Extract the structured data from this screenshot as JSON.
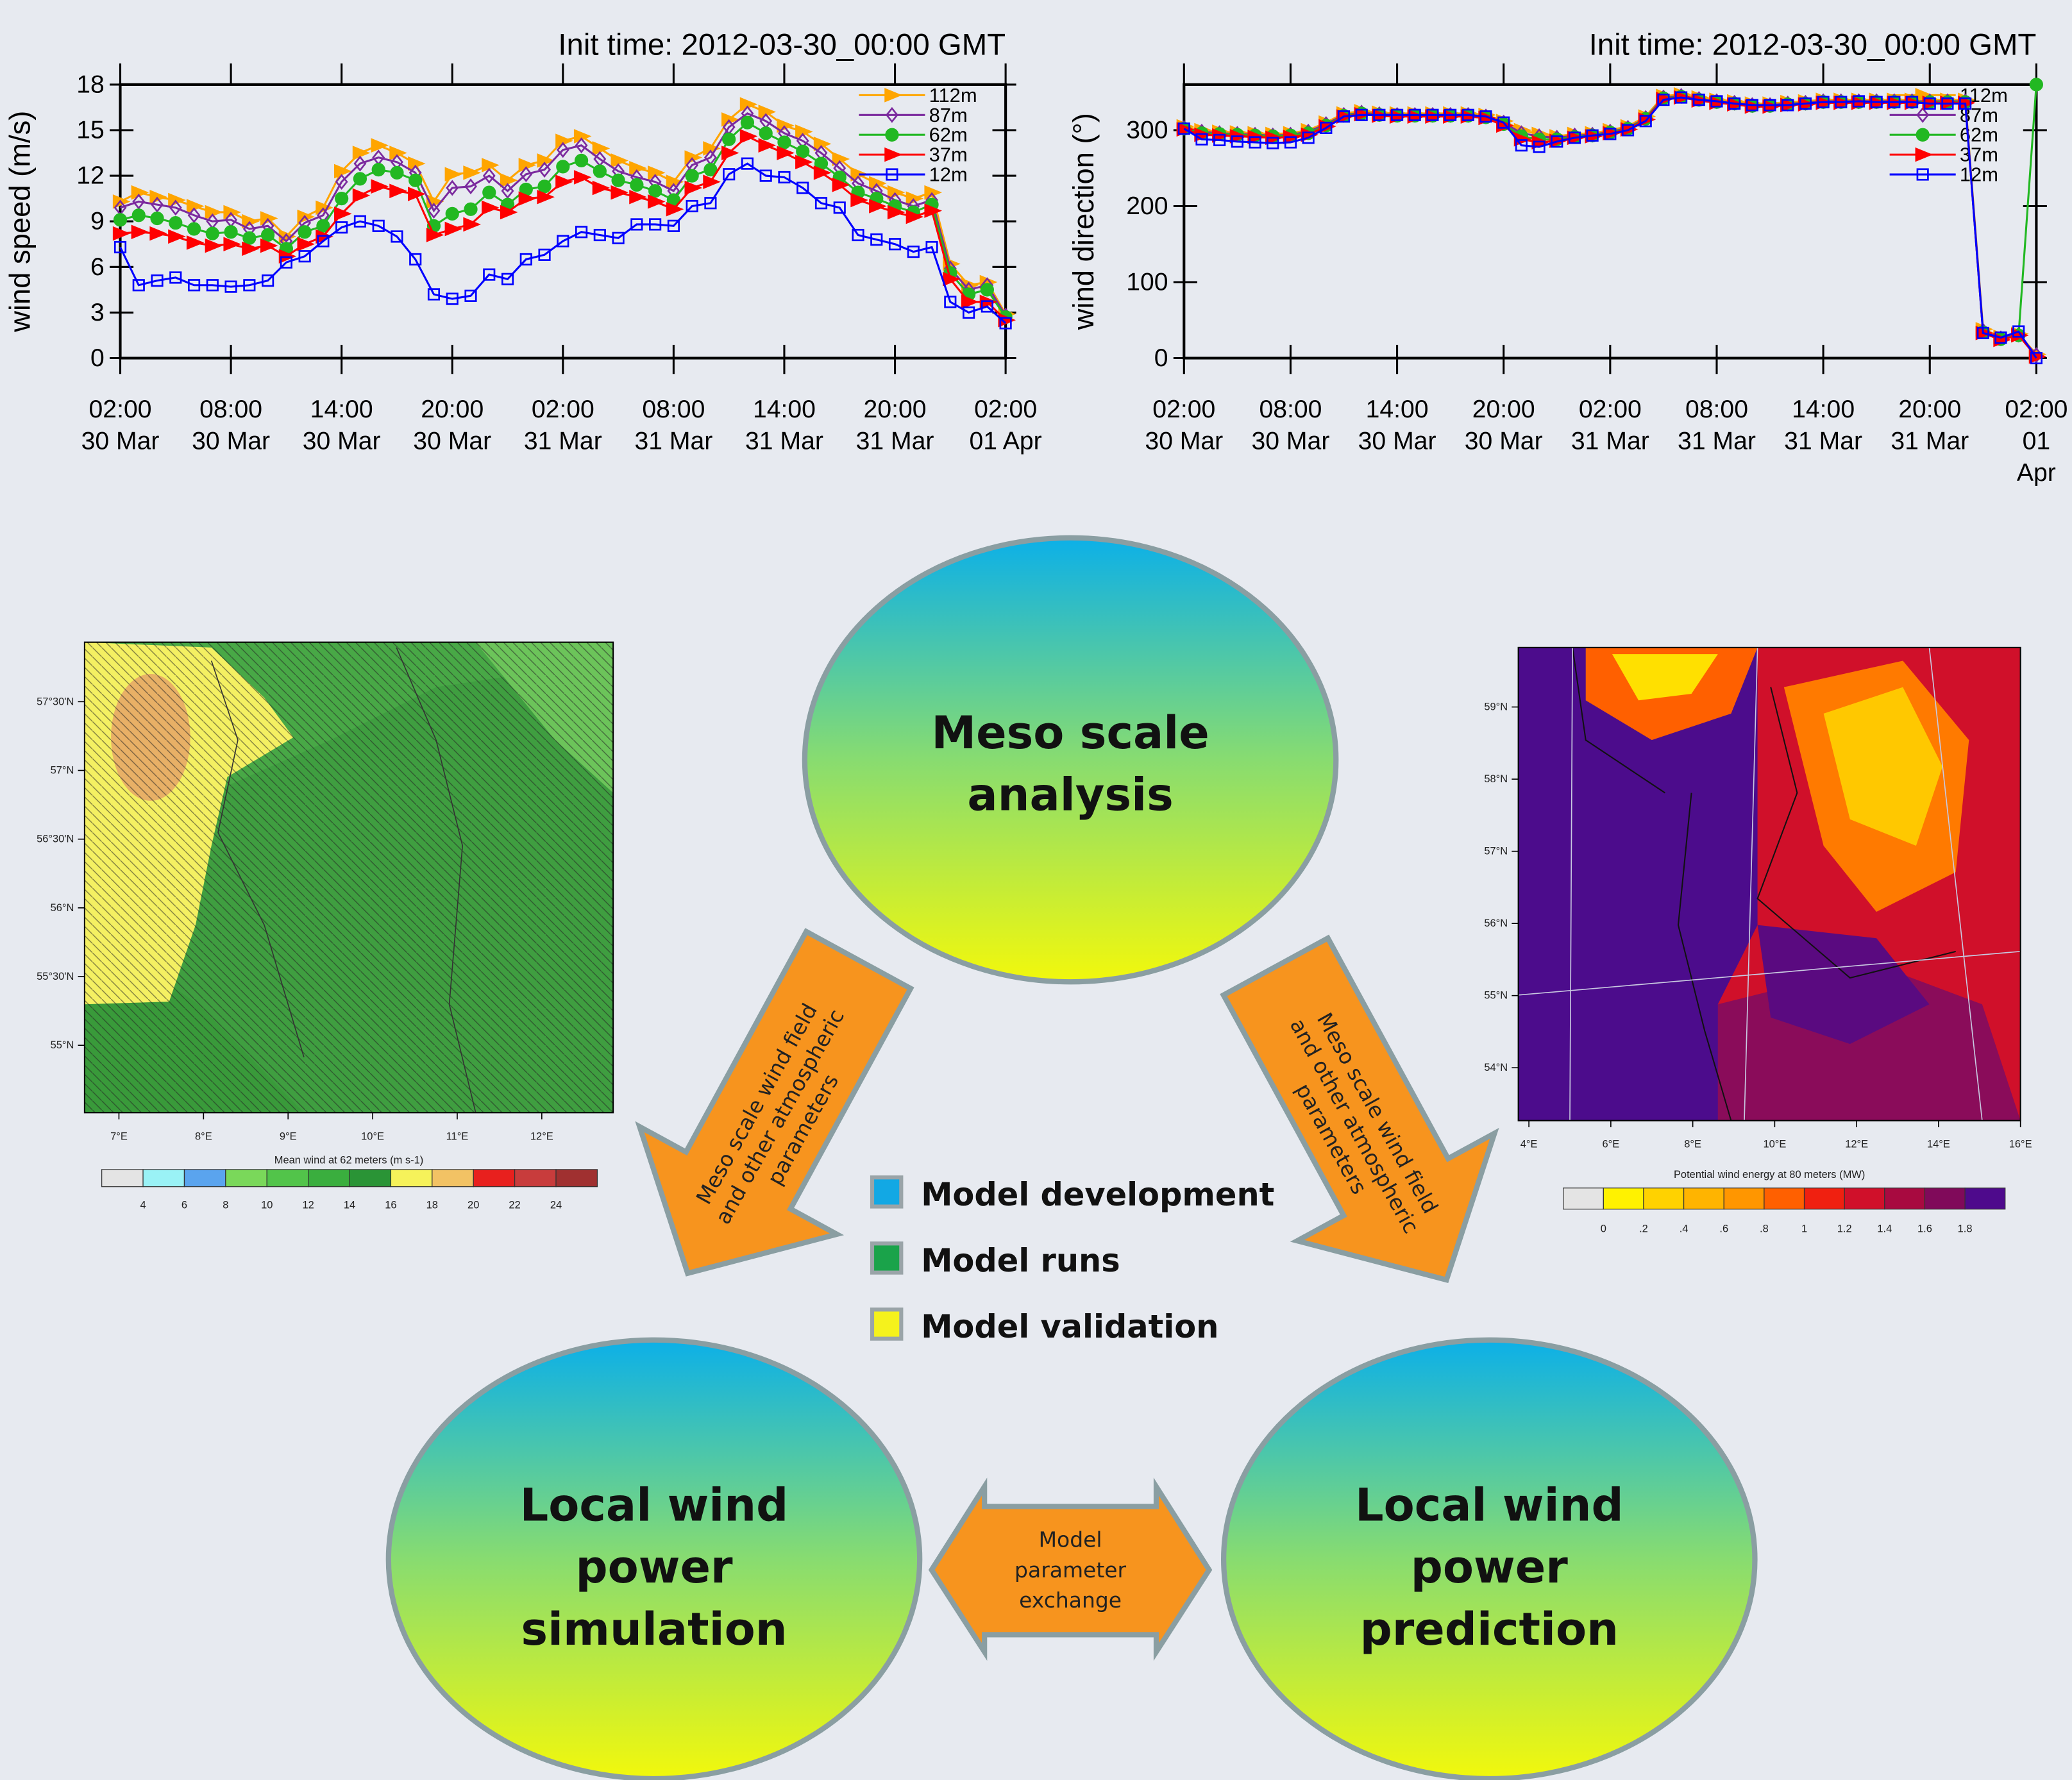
{
  "chart_data": [
    {
      "type": "line",
      "title": "Init time: 2012-03-30_00:00 GMT",
      "ylabel": "wind speed (m/s)",
      "x": [
        "30 Mar 02:00",
        "30 Mar 03:00",
        "30 Mar 04:00",
        "30 Mar 05:00",
        "30 Mar 06:00",
        "30 Mar 07:00",
        "30 Mar 08:00",
        "30 Mar 09:00",
        "30 Mar 10:00",
        "30 Mar 11:00",
        "30 Mar 12:00",
        "30 Mar 13:00",
        "30 Mar 14:00",
        "30 Mar 15:00",
        "30 Mar 16:00",
        "30 Mar 17:00",
        "30 Mar 18:00",
        "30 Mar 19:00",
        "30 Mar 20:00",
        "30 Mar 21:00",
        "30 Mar 22:00",
        "30 Mar 23:00",
        "31 Mar 00:00",
        "31 Mar 01:00",
        "31 Mar 02:00",
        "31 Mar 03:00",
        "31 Mar 04:00",
        "31 Mar 05:00",
        "31 Mar 06:00",
        "31 Mar 07:00",
        "31 Mar 08:00",
        "31 Mar 09:00",
        "31 Mar 10:00",
        "31 Mar 11:00",
        "31 Mar 12:00",
        "31 Mar 13:00",
        "31 Mar 14:00",
        "31 Mar 15:00",
        "31 Mar 16:00",
        "31 Mar 17:00",
        "31 Mar 18:00",
        "31 Mar 19:00",
        "31 Mar 20:00",
        "31 Mar 21:00",
        "31 Mar 22:00",
        "31 Mar 23:00",
        "01 Apr 00:00",
        "01 Apr 01:00",
        "01 Apr 02:00"
      ],
      "xticks": [
        {
          "value": "30 Mar 02:00",
          "label": "02:00\n30 Mar"
        },
        {
          "value": "30 Mar 08:00",
          "label": "08:00\n30 Mar"
        },
        {
          "value": "30 Mar 14:00",
          "label": "14:00\n30 Mar"
        },
        {
          "value": "30 Mar 20:00",
          "label": "20:00\n30 Mar"
        },
        {
          "value": "31 Mar 02:00",
          "label": "02:00\n31 Mar"
        },
        {
          "value": "31 Mar 08:00",
          "label": "08:00\n31 Mar"
        },
        {
          "value": "31 Mar 14:00",
          "label": "14:00\n31 Mar"
        },
        {
          "value": "31 Mar 20:00",
          "label": "20:00\n31 Mar"
        },
        {
          "value": "01 Apr 02:00",
          "label": "02:00\n01 Apr"
        }
      ],
      "ylim": [
        0,
        18
      ],
      "yticks": [
        0,
        3,
        6,
        9,
        12,
        15,
        18
      ],
      "legend": "upper right",
      "series": [
        {
          "name": "112m",
          "color": "#ffa500",
          "marker": "triangle-right",
          "filled": true,
          "values": [
            10.3,
            10.9,
            10.6,
            10.4,
            10.0,
            9.6,
            9.6,
            9.0,
            9.2,
            8.0,
            9.3,
            9.9,
            12.3,
            13.5,
            14.0,
            13.5,
            12.8,
            10.3,
            12.1,
            12.2,
            12.7,
            11.7,
            12.7,
            13.0,
            14.3,
            14.6,
            13.8,
            13.0,
            12.5,
            12.2,
            11.6,
            13.2,
            13.8,
            15.7,
            16.7,
            16.2,
            15.3,
            14.9,
            14.1,
            13.1,
            12.1,
            11.5,
            10.9,
            10.5,
            10.9,
            6.2,
            4.8,
            5.0,
            2.9
          ]
        },
        {
          "name": "87m",
          "color": "#7b2a9e",
          "marker": "diamond",
          "filled": false,
          "values": [
            9.9,
            10.3,
            10.1,
            9.9,
            9.4,
            9.0,
            9.1,
            8.5,
            8.7,
            7.7,
            8.9,
            9.4,
            11.6,
            12.8,
            13.2,
            12.9,
            12.2,
            9.7,
            11.2,
            11.3,
            12.0,
            11.0,
            12.1,
            12.4,
            13.7,
            14.0,
            13.1,
            12.3,
            11.9,
            11.6,
            11.0,
            12.7,
            13.2,
            15.2,
            16.1,
            15.6,
            14.8,
            14.3,
            13.5,
            12.5,
            11.5,
            11.0,
            10.4,
            10.0,
            10.4,
            5.9,
            4.5,
            4.8,
            2.8
          ]
        },
        {
          "name": "62m",
          "color": "#22b822",
          "marker": "circle",
          "filled": true,
          "values": [
            9.1,
            9.4,
            9.2,
            8.9,
            8.5,
            8.2,
            8.3,
            7.9,
            8.1,
            7.2,
            8.3,
            8.7,
            10.5,
            11.8,
            12.4,
            12.2,
            11.7,
            8.7,
            9.5,
            9.8,
            10.9,
            10.1,
            11.1,
            11.3,
            12.6,
            13.0,
            12.3,
            11.7,
            11.4,
            11.0,
            10.4,
            12.0,
            12.4,
            14.4,
            15.5,
            14.8,
            14.2,
            13.6,
            12.8,
            11.9,
            10.9,
            10.5,
            10.0,
            9.6,
            10.1,
            5.6,
            4.2,
            4.5,
            2.7
          ]
        },
        {
          "name": "37m",
          "color": "#ff0000",
          "marker": "triangle-right",
          "filled": true,
          "values": [
            8.2,
            8.3,
            8.2,
            8.0,
            7.6,
            7.4,
            7.5,
            7.2,
            7.4,
            6.7,
            7.5,
            8.0,
            9.5,
            10.7,
            11.3,
            11.0,
            10.8,
            8.1,
            8.5,
            8.8,
            9.9,
            9.6,
            10.5,
            10.6,
            11.6,
            11.9,
            11.2,
            10.9,
            10.6,
            10.3,
            9.8,
            11.2,
            11.6,
            13.5,
            14.6,
            14.0,
            13.5,
            12.9,
            12.2,
            11.4,
            10.4,
            10.0,
            9.6,
            9.3,
            9.7,
            5.2,
            3.7,
            3.7,
            2.5
          ]
        },
        {
          "name": "12m",
          "color": "#0000ff",
          "marker": "square",
          "filled": false,
          "values": [
            7.3,
            4.8,
            5.1,
            5.3,
            4.8,
            4.8,
            4.7,
            4.8,
            5.1,
            6.3,
            6.7,
            7.7,
            8.6,
            9.0,
            8.7,
            8.0,
            6.5,
            4.2,
            3.9,
            4.1,
            5.5,
            5.2,
            6.5,
            6.8,
            7.7,
            8.3,
            8.1,
            7.9,
            8.8,
            8.8,
            8.7,
            10.0,
            10.2,
            12.1,
            12.8,
            12.0,
            11.9,
            11.2,
            10.2,
            9.9,
            8.1,
            7.8,
            7.5,
            7.0,
            7.3,
            3.7,
            3.0,
            3.4,
            2.3
          ]
        }
      ]
    },
    {
      "type": "line",
      "title": "Init time: 2012-03-30_00:00 GMT",
      "ylabel": "wind direction (°)",
      "x": [
        "30 Mar 02:00",
        "30 Mar 03:00",
        "30 Mar 04:00",
        "30 Mar 05:00",
        "30 Mar 06:00",
        "30 Mar 07:00",
        "30 Mar 08:00",
        "30 Mar 09:00",
        "30 Mar 10:00",
        "30 Mar 11:00",
        "30 Mar 12:00",
        "30 Mar 13:00",
        "30 Mar 14:00",
        "30 Mar 15:00",
        "30 Mar 16:00",
        "30 Mar 17:00",
        "30 Mar 18:00",
        "30 Mar 19:00",
        "30 Mar 20:00",
        "30 Mar 21:00",
        "30 Mar 22:00",
        "30 Mar 23:00",
        "31 Mar 00:00",
        "31 Mar 01:00",
        "31 Mar 02:00",
        "31 Mar 03:00",
        "31 Mar 04:00",
        "31 Mar 05:00",
        "31 Mar 06:00",
        "31 Mar 07:00",
        "31 Mar 08:00",
        "31 Mar 09:00",
        "31 Mar 10:00",
        "31 Mar 11:00",
        "31 Mar 12:00",
        "31 Mar 13:00",
        "31 Mar 14:00",
        "31 Mar 15:00",
        "31 Mar 16:00",
        "31 Mar 17:00",
        "31 Mar 18:00",
        "31 Mar 19:00",
        "31 Mar 20:00",
        "31 Mar 21:00",
        "31 Mar 22:00",
        "31 Mar 23:00",
        "01 Apr 00:00",
        "01 Apr 01:00",
        "01 Apr 02:00"
      ],
      "xticks": [
        {
          "value": "30 Mar 02:00",
          "label": "02:00\n30 Mar"
        },
        {
          "value": "30 Mar 08:00",
          "label": "08:00\n30 Mar"
        },
        {
          "value": "30 Mar 14:00",
          "label": "14:00\n30 Mar"
        },
        {
          "value": "30 Mar 20:00",
          "label": "20:00\n30 Mar"
        },
        {
          "value": "31 Mar 02:00",
          "label": "02:00\n31 Mar"
        },
        {
          "value": "31 Mar 08:00",
          "label": "08:00\n31 Mar"
        },
        {
          "value": "31 Mar 14:00",
          "label": "14:00\n31 Mar"
        },
        {
          "value": "31 Mar 20:00",
          "label": "20:00\n31 Mar"
        },
        {
          "value": "01 Apr 02:00",
          "label": "02:00\n01 Apr"
        }
      ],
      "ylim": [
        0,
        360
      ],
      "yticks": [
        0,
        100,
        200,
        300
      ],
      "legend": "upper right",
      "series": [
        {
          "name": "112m",
          "color": "#ffa500",
          "marker": "triangle-right",
          "filled": true,
          "values": [
            305,
            300,
            298,
            297,
            296,
            295,
            296,
            300,
            310,
            322,
            325,
            323,
            322,
            322,
            322,
            322,
            322,
            320,
            312,
            300,
            295,
            292,
            295,
            296,
            300,
            305,
            318,
            345,
            347,
            343,
            340,
            338,
            335,
            335,
            337,
            338,
            340,
            340,
            340,
            340,
            340,
            340,
            340,
            340,
            340,
            38,
            28,
            32,
            5
          ]
        },
        {
          "name": "87m",
          "color": "#7b2a9e",
          "marker": "diamond",
          "filled": false,
          "values": [
            303,
            298,
            296,
            295,
            294,
            293,
            294,
            298,
            308,
            320,
            323,
            321,
            320,
            320,
            320,
            320,
            320,
            318,
            310,
            296,
            292,
            290,
            293,
            294,
            298,
            303,
            316,
            343,
            345,
            341,
            338,
            336,
            333,
            333,
            335,
            336,
            338,
            338,
            338,
            338,
            338,
            338,
            338,
            338,
            338,
            36,
            26,
            31,
            4
          ]
        },
        {
          "name": "62m",
          "color": "#22b822",
          "marker": "circle",
          "filled": true,
          "values": [
            302,
            296,
            295,
            294,
            293,
            292,
            293,
            296,
            306,
            319,
            322,
            320,
            319,
            319,
            319,
            319,
            319,
            317,
            308,
            292,
            288,
            288,
            291,
            293,
            297,
            302,
            315,
            342,
            344,
            340,
            337,
            335,
            332,
            332,
            334,
            335,
            337,
            337,
            337,
            337,
            337,
            337,
            337,
            337,
            337,
            34,
            25,
            30,
            360
          ]
        },
        {
          "name": "37m",
          "color": "#ff0000",
          "marker": "triangle-right",
          "filled": true,
          "values": [
            301,
            294,
            293,
            292,
            291,
            290,
            291,
            294,
            305,
            318,
            321,
            319,
            318,
            318,
            318,
            318,
            318,
            316,
            306,
            288,
            284,
            286,
            290,
            292,
            296,
            301,
            314,
            341,
            343,
            339,
            336,
            334,
            331,
            331,
            333,
            334,
            336,
            336,
            336,
            336,
            336,
            336,
            336,
            336,
            336,
            33,
            24,
            30,
            2
          ]
        },
        {
          "name": "12m",
          "color": "#0000ff",
          "marker": "square",
          "filled": false,
          "values": [
            302,
            288,
            287,
            285,
            284,
            283,
            284,
            290,
            303,
            318,
            320,
            320,
            320,
            320,
            320,
            320,
            320,
            318,
            310,
            280,
            278,
            285,
            290,
            293,
            295,
            300,
            312,
            340,
            343,
            340,
            338,
            335,
            333,
            333,
            333,
            335,
            337,
            337,
            338,
            337,
            337,
            337,
            335,
            335,
            335,
            33,
            27,
            35,
            0
          ]
        }
      ]
    }
  ],
  "diagram": {
    "nodes": [
      {
        "lines": [
          "Meso scale",
          "analysis"
        ]
      },
      {
        "lines": [
          "Local wind",
          "power",
          "simulation"
        ]
      },
      {
        "lines": [
          "Local wind",
          "power",
          "prediction"
        ]
      }
    ],
    "arrows": [
      {
        "lines": [
          "Meso scale wind field",
          "and other atmospheric",
          "parameters"
        ]
      },
      {
        "lines": [
          "Meso scale wind field",
          "and other atmospheric",
          "parameters"
        ]
      },
      {
        "lines": [
          "Model",
          "parameter",
          "exchange"
        ]
      }
    ],
    "legend": [
      {
        "label": "Model development",
        "color": "#12a8e4"
      },
      {
        "label": "Model runs",
        "color": "#1aa34a"
      },
      {
        "label": "Model validation",
        "color": "#f5f21c"
      }
    ]
  },
  "maps": [
    {
      "lat_labels": [
        "57°30'N",
        "57°N",
        "56°30'N",
        "56°N",
        "55°30'N",
        "55°N"
      ],
      "lon_labels": [
        "7°E",
        "8°E",
        "9°E",
        "10°E",
        "11°E",
        "12°E"
      ],
      "caption": "Mean wind at 62 meters  (m s-1)",
      "colorbar": {
        "colors": [
          "#e4e4e4",
          "#9af2f6",
          "#5aa4ee",
          "#7ad85a",
          "#52c44a",
          "#3aae3e",
          "#2a9436",
          "#f6f25a",
          "#f2c264",
          "#e8201e",
          "#c83c3c",
          "#a03030"
        ],
        "labels": [
          "4",
          "6",
          "8",
          "10",
          "12",
          "14",
          "16",
          "18",
          "20",
          "22",
          "24"
        ]
      }
    },
    {
      "lat_labels": [
        "59°N",
        "58°N",
        "57°N",
        "56°N",
        "55°N",
        "54°N"
      ],
      "lon_labels": [
        "4°E",
        "6°E",
        "8°E",
        "10°E",
        "12°E",
        "14°E",
        "16°E"
      ],
      "caption": "Potential wind energy at 80 meters  (MW)",
      "colorbar": {
        "colors": [
          "#e4e4e4",
          "#fff200",
          "#ffd200",
          "#ffb400",
          "#ff9600",
          "#ff6000",
          "#f02010",
          "#d0102a",
          "#a80a40",
          "#800a5a",
          "#4e0a8c"
        ],
        "labels": [
          "0",
          ".2",
          ".4",
          ".6",
          ".8",
          "1",
          "1.2",
          "1.4",
          "1.6",
          "1.8"
        ]
      }
    }
  ]
}
